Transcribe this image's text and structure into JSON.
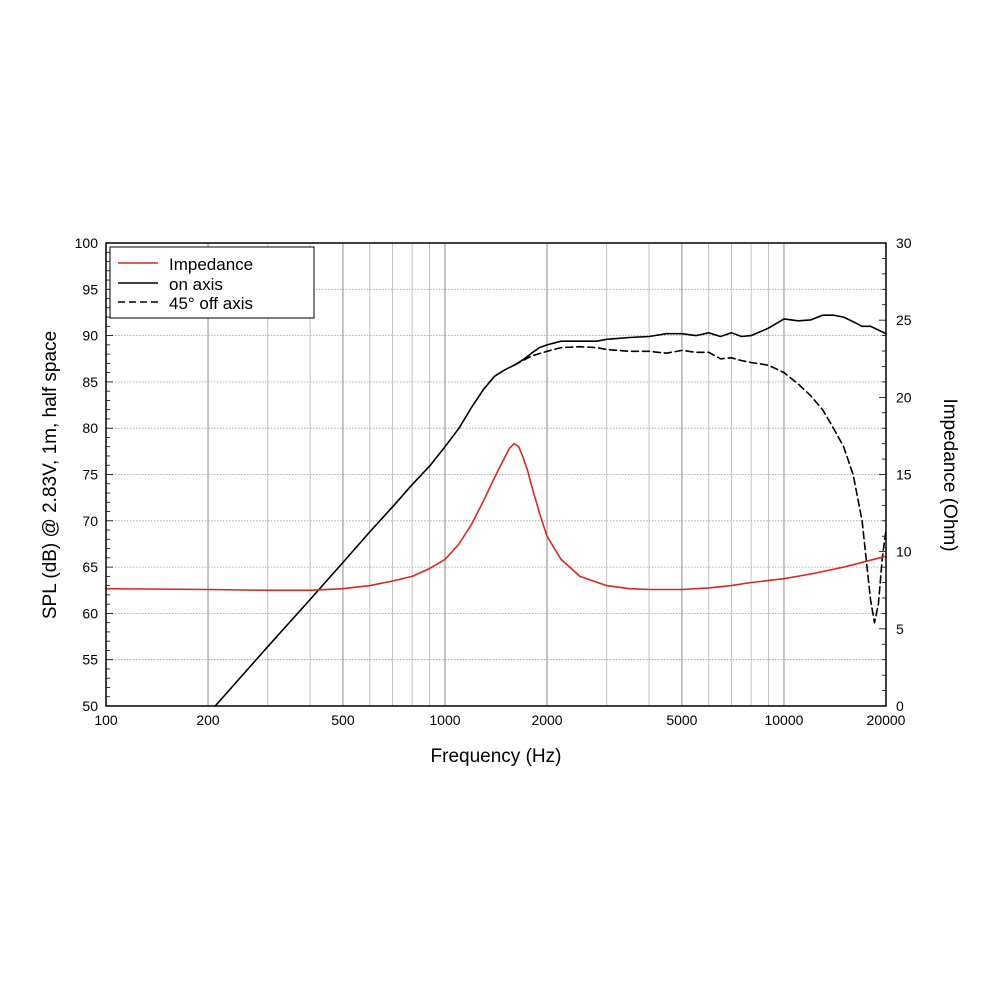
{
  "chart_data": {
    "type": "line",
    "xlabel": "Frequency (Hz)",
    "ylabel": "SPL (dB) @ 2.83V, 1m, half space",
    "y2label": "Impedance (Ohm)",
    "xscale": "log",
    "xlim": [
      100,
      20000
    ],
    "ylim": [
      50,
      100
    ],
    "y2lim": [
      0,
      30
    ],
    "grid": true,
    "legend_position": "top-left",
    "x_ticks": [
      "100",
      "200",
      "500",
      "1000",
      "2000",
      "5000",
      "10000",
      "20000"
    ],
    "x_tick_values": [
      100,
      200,
      500,
      1000,
      2000,
      5000,
      10000,
      20000
    ],
    "y_ticks": [
      "50",
      "55",
      "60",
      "65",
      "70",
      "75",
      "80",
      "85",
      "90",
      "95",
      "100"
    ],
    "y_tick_values": [
      50,
      55,
      60,
      65,
      70,
      75,
      80,
      85,
      90,
      95,
      100
    ],
    "y2_ticks": [
      "0",
      "5",
      "10",
      "15",
      "20",
      "25",
      "30"
    ],
    "y2_tick_values": [
      0,
      5,
      10,
      15,
      20,
      25,
      30
    ],
    "series": [
      {
        "name": "Impedance",
        "axis": "right",
        "color": "#d42a20",
        "dash": "solid",
        "x": [
          100,
          200,
          300,
          400,
          500,
          600,
          700,
          800,
          900,
          1000,
          1100,
          1200,
          1300,
          1400,
          1500,
          1550,
          1600,
          1650,
          1700,
          1750,
          1800,
          1900,
          2000,
          2200,
          2500,
          3000,
          3500,
          4000,
          5000,
          6000,
          7000,
          8000,
          10000,
          12000,
          15000,
          18000,
          20000
        ],
        "values": [
          7.6,
          7.55,
          7.5,
          7.5,
          7.6,
          7.8,
          8.1,
          8.4,
          8.9,
          9.5,
          10.5,
          11.8,
          13.3,
          14.8,
          16.1,
          16.7,
          17.0,
          16.8,
          16.1,
          15.3,
          14.3,
          12.5,
          11.0,
          9.5,
          8.4,
          7.8,
          7.6,
          7.55,
          7.55,
          7.65,
          7.8,
          8.0,
          8.25,
          8.55,
          9.0,
          9.45,
          9.7
        ]
      },
      {
        "name": "on axis",
        "axis": "left",
        "color": "#000000",
        "dash": "solid",
        "x": [
          210,
          300,
          400,
          500,
          600,
          700,
          800,
          900,
          1000,
          1100,
          1200,
          1300,
          1400,
          1500,
          1600,
          1700,
          1800,
          1900,
          2000,
          2200,
          2500,
          2800,
          3000,
          3500,
          4000,
          4500,
          5000,
          5500,
          6000,
          6500,
          7000,
          7500,
          8000,
          9000,
          10000,
          11000,
          12000,
          13000,
          14000,
          15000,
          16000,
          17000,
          18000,
          19000,
          20000
        ],
        "values": [
          50.0,
          56.4,
          61.5,
          65.5,
          68.8,
          71.5,
          73.9,
          75.9,
          78.0,
          80.0,
          82.3,
          84.2,
          85.6,
          86.3,
          86.8,
          87.4,
          88.1,
          88.7,
          89.0,
          89.4,
          89.4,
          89.4,
          89.6,
          89.8,
          89.9,
          90.2,
          90.2,
          90.0,
          90.3,
          89.9,
          90.3,
          89.9,
          90.0,
          90.8,
          91.8,
          91.6,
          91.7,
          92.2,
          92.2,
          92.0,
          91.5,
          91.0,
          91.0,
          90.6,
          90.2
        ]
      },
      {
        "name": "45° off axis",
        "axis": "left",
        "color": "#000000",
        "dash": "dashed",
        "x": [
          1600,
          1800,
          2000,
          2200,
          2500,
          2800,
          3000,
          3500,
          4000,
          4500,
          5000,
          5500,
          6000,
          6500,
          7000,
          7500,
          8000,
          9000,
          10000,
          11000,
          12000,
          13000,
          14000,
          15000,
          16000,
          17000,
          18000,
          18500,
          19000,
          19500,
          20000
        ],
        "values": [
          86.8,
          87.8,
          88.3,
          88.7,
          88.8,
          88.7,
          88.5,
          88.3,
          88.3,
          88.1,
          88.4,
          88.2,
          88.2,
          87.5,
          87.6,
          87.3,
          87.1,
          86.8,
          86.0,
          84.8,
          83.5,
          82.0,
          80.0,
          78.0,
          75.0,
          70.0,
          61.5,
          59.0,
          61.0,
          66.0,
          69.0
        ]
      }
    ]
  }
}
